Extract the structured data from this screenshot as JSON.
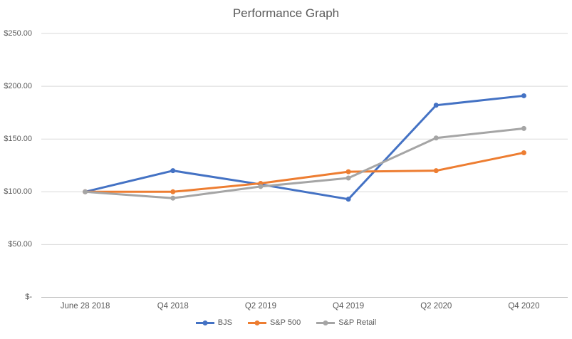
{
  "title": "Performance Graph",
  "chart_data": {
    "type": "line",
    "title": "Performance Graph",
    "categories": [
      "June 28 2018",
      "Q4 2018",
      "Q2 2019",
      "Q4 2019",
      "Q2 2020",
      "Q4 2020"
    ],
    "series": [
      {
        "name": "BJS",
        "color": "#4472C4",
        "values": [
          100,
          120,
          107,
          93,
          182,
          191
        ]
      },
      {
        "name": "S&P 500",
        "color": "#ED7D31",
        "values": [
          100,
          100,
          108,
          119,
          120,
          137
        ]
      },
      {
        "name": "S&P Retail",
        "color": "#A5A5A5",
        "values": [
          100,
          94,
          105,
          113,
          151,
          160
        ]
      }
    ],
    "y_axis": {
      "tick_labels": [
        "$250.00",
        "$200.00",
        "$150.00",
        "$100.00",
        "$50.00",
        "$-"
      ],
      "tick_values": [
        250,
        200,
        150,
        100,
        50,
        0
      ],
      "min": 0,
      "max": 250
    },
    "grid": true,
    "legend_position": "bottom",
    "styles": {
      "gridline_color": "#D9D9D9",
      "axis_line_color": "#BFBFBF",
      "text_color": "#595959",
      "background": "#FFFFFF",
      "marker_radius": 3.5,
      "line_width": 3
    }
  }
}
